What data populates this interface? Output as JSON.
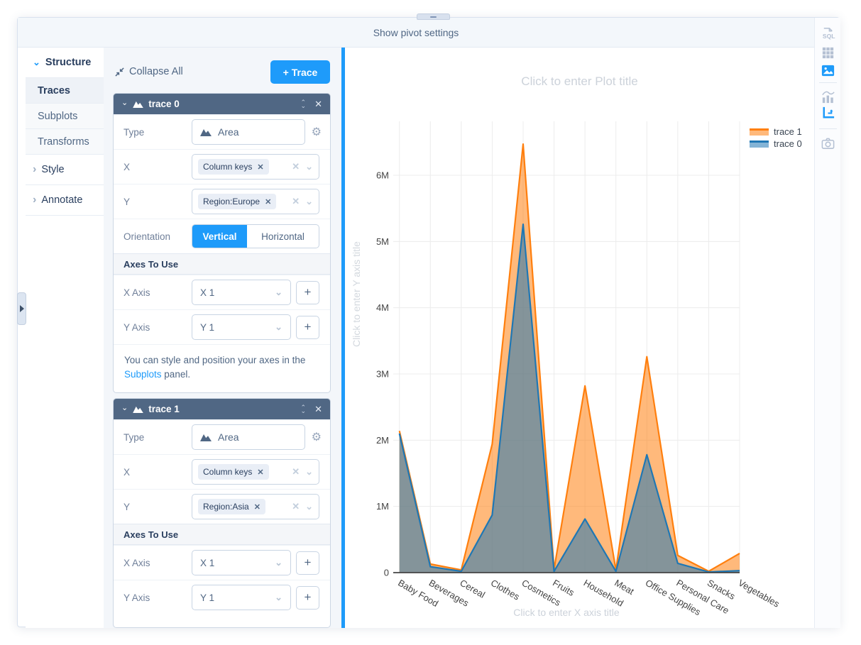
{
  "top_bar": {
    "label": "Show pivot settings"
  },
  "sidebar": {
    "structure_label": "Structure",
    "traces_label": "Traces",
    "subplots_label": "Subplots",
    "transforms_label": "Transforms",
    "style_label": "Style",
    "annotate_label": "Annotate"
  },
  "panel": {
    "collapse_all_label": "Collapse All",
    "add_trace_label": "+ Trace",
    "note_prefix": "You can style and position your axes in the ",
    "note_link": "Subplots",
    "note_suffix": " panel.",
    "traces": [
      {
        "title": "trace 0",
        "type_label": "Type",
        "type_value": "Area",
        "x_label": "X",
        "x_chip": "Column keys",
        "y_label": "Y",
        "y_chip": "Region:Europe",
        "orientation_label": "Orientation",
        "orientation_options": [
          "Vertical",
          "Horizontal"
        ],
        "axes_section_label": "Axes To Use",
        "x_axis_label": "X Axis",
        "x_axis_value": "X 1",
        "y_axis_label": "Y Axis",
        "y_axis_value": "Y 1"
      },
      {
        "title": "trace 1",
        "type_label": "Type",
        "type_value": "Area",
        "x_label": "X",
        "x_chip": "Column keys",
        "y_label": "Y",
        "y_chip": "Region:Asia",
        "axes_section_label": "Axes To Use",
        "x_axis_label": "X Axis",
        "x_axis_value": "X 1",
        "y_axis_label": "Y Axis",
        "y_axis_value": "Y 1"
      }
    ]
  },
  "chart_data": {
    "type": "area",
    "title_placeholder": "Click to enter Plot title",
    "x_title_placeholder": "Click to enter X axis title",
    "y_title_placeholder": "Click to enter Y axis title",
    "categories": [
      "Baby Food",
      "Beverages",
      "Cereal",
      "Clothes",
      "Cosmetics",
      "Fruits",
      "Household",
      "Meat",
      "Office Supplies",
      "Personal Care",
      "Snacks",
      "Vegetables"
    ],
    "series": [
      {
        "name": "trace 1",
        "source": "Region:Asia",
        "color": "#ff7f0e",
        "values_millions": [
          2.14,
          0.13,
          0.04,
          1.94,
          6.47,
          0.05,
          2.82,
          0.04,
          3.26,
          0.26,
          0.02,
          0.29
        ]
      },
      {
        "name": "trace 0",
        "source": "Region:Europe",
        "color": "#1f77b4",
        "values_millions": [
          2.1,
          0.09,
          0.02,
          0.87,
          5.26,
          0.02,
          0.81,
          0.02,
          1.78,
          0.14,
          0.01,
          0.03
        ]
      }
    ],
    "ylim": [
      0,
      6.8
    ],
    "ytick_labels": [
      "0",
      "1M",
      "2M",
      "3M",
      "4M",
      "5M",
      "6M"
    ],
    "grid": true,
    "legend_position": "top-right",
    "legend": [
      {
        "label": "trace 1",
        "color": "#ff7f0e"
      },
      {
        "label": "trace 0",
        "color": "#1f77b4"
      }
    ]
  },
  "toolbar_right": {
    "icons": [
      "sql-file",
      "data-grid",
      "chart-image",
      "chart-analytics",
      "axes-layout",
      "camera"
    ]
  },
  "colors": {
    "accent": "#1e9bfa",
    "header": "#506784",
    "grid": "#ececec",
    "axis": "#444444"
  }
}
